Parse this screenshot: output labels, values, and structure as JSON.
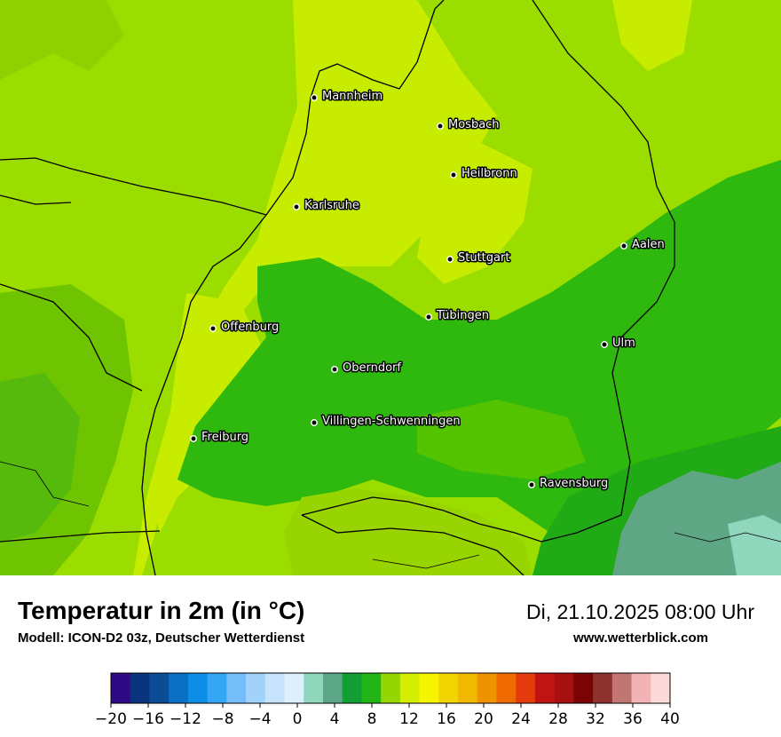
{
  "map": {
    "cities": [
      {
        "name": "Mannheim"
      },
      {
        "name": "Mosbach"
      },
      {
        "name": "Heilbronn"
      },
      {
        "name": "Karlsruhe"
      },
      {
        "name": "Aalen"
      },
      {
        "name": "Stuttgart"
      },
      {
        "name": "Tübingen"
      },
      {
        "name": "Offenburg"
      },
      {
        "name": "Ulm"
      },
      {
        "name": "Oberndorf"
      },
      {
        "name": "Villingen-Schwenningen"
      },
      {
        "name": "Freiburg"
      },
      {
        "name": "Ravensburg"
      }
    ]
  },
  "footer": {
    "title": "Temperatur in 2m (in °C)",
    "model": "Modell: ICON-D2 03z, Deutscher Wetterdienst",
    "datetime": "Di, 21.10.2025 08:00 Uhr",
    "website": "www.wetterblick.com"
  },
  "legend": {
    "unit": "°C",
    "min": -20,
    "max": 40,
    "step": 2,
    "tick_labels": [
      "−20",
      "−16",
      "−12",
      "−8",
      "−4",
      "0",
      "4",
      "8",
      "12",
      "16",
      "20",
      "24",
      "28",
      "32",
      "36",
      "40"
    ],
    "colors": [
      "#2e0a85",
      "#08357d",
      "#0a4d94",
      "#0a6fc5",
      "#0c8de6",
      "#34a6f3",
      "#75bdf8",
      "#a1d2f9",
      "#c6e3fb",
      "#ddeefd",
      "#8fd6bc",
      "#5ca788",
      "#119e33",
      "#22b515",
      "#95d600",
      "#d3ee00",
      "#f5f500",
      "#f1d400",
      "#f0b900",
      "#ef9200",
      "#ef6a00",
      "#e53a0b",
      "#c01313",
      "#a71010",
      "#7a0303",
      "#8e3230",
      "#c17674",
      "#f1b3b3",
      "#fddada"
    ]
  }
}
